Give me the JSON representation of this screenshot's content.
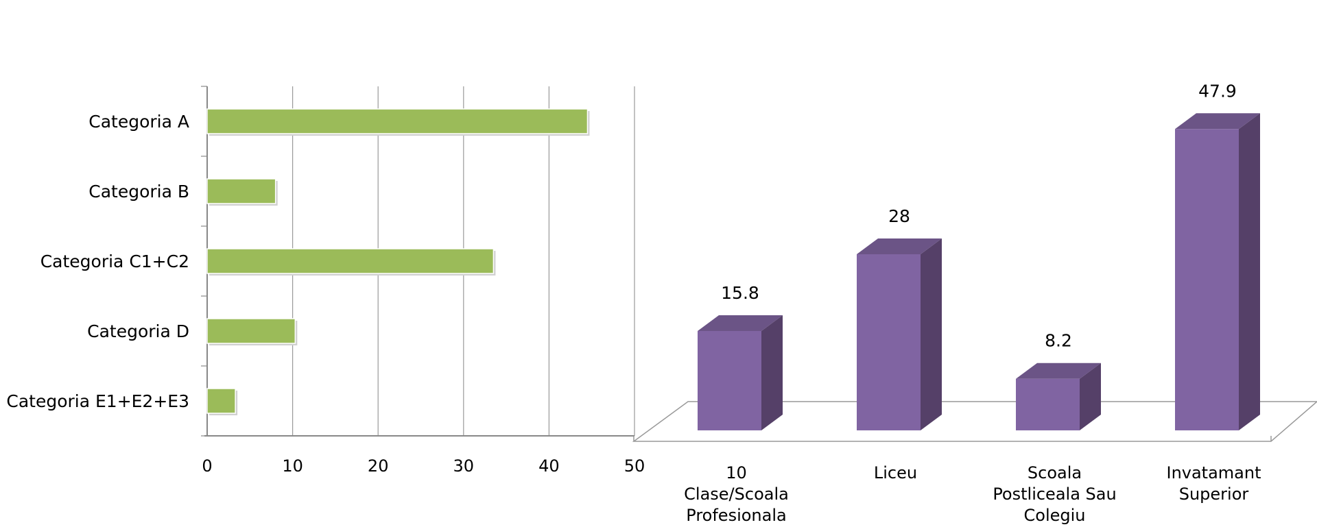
{
  "chart_data": [
    {
      "type": "bar",
      "orientation": "horizontal",
      "categories": [
        "Categoria A",
        "Categoria B",
        "Categoria C1+C2",
        "Categoria D",
        "Categoria E1+E2+E3"
      ],
      "values": [
        44.5,
        8.0,
        33.5,
        10.3,
        3.3
      ],
      "xlim": [
        0,
        50
      ],
      "xticks": [
        "0",
        "10",
        "20",
        "30",
        "40",
        "50"
      ],
      "grid": true,
      "colors": {
        "bar": "#9bbb59",
        "axis": "#888888",
        "grid": "#999999"
      }
    },
    {
      "type": "bar",
      "style": "3d-column",
      "categories": [
        "10 Clase/Scoala Profesionala",
        "Liceu",
        "Scoala Postliceala Sau Colegiu",
        "Invatamant Superior"
      ],
      "category_lines": [
        [
          "10",
          "Clase/Scoala",
          "Profesionala"
        ],
        [
          "Liceu"
        ],
        [
          "Scoala",
          "Postliceala Sau",
          "Colegiu"
        ],
        [
          "Invatamant",
          "Superior"
        ]
      ],
      "values": [
        15.8,
        28,
        8.2,
        47.9
      ],
      "data_labels": [
        "15.8",
        "28",
        "8.2",
        "47.9"
      ],
      "grid": false,
      "colors": {
        "front": "#8064a2",
        "side": "#554068",
        "top": "#6b5486",
        "floor": "#999999"
      }
    }
  ]
}
